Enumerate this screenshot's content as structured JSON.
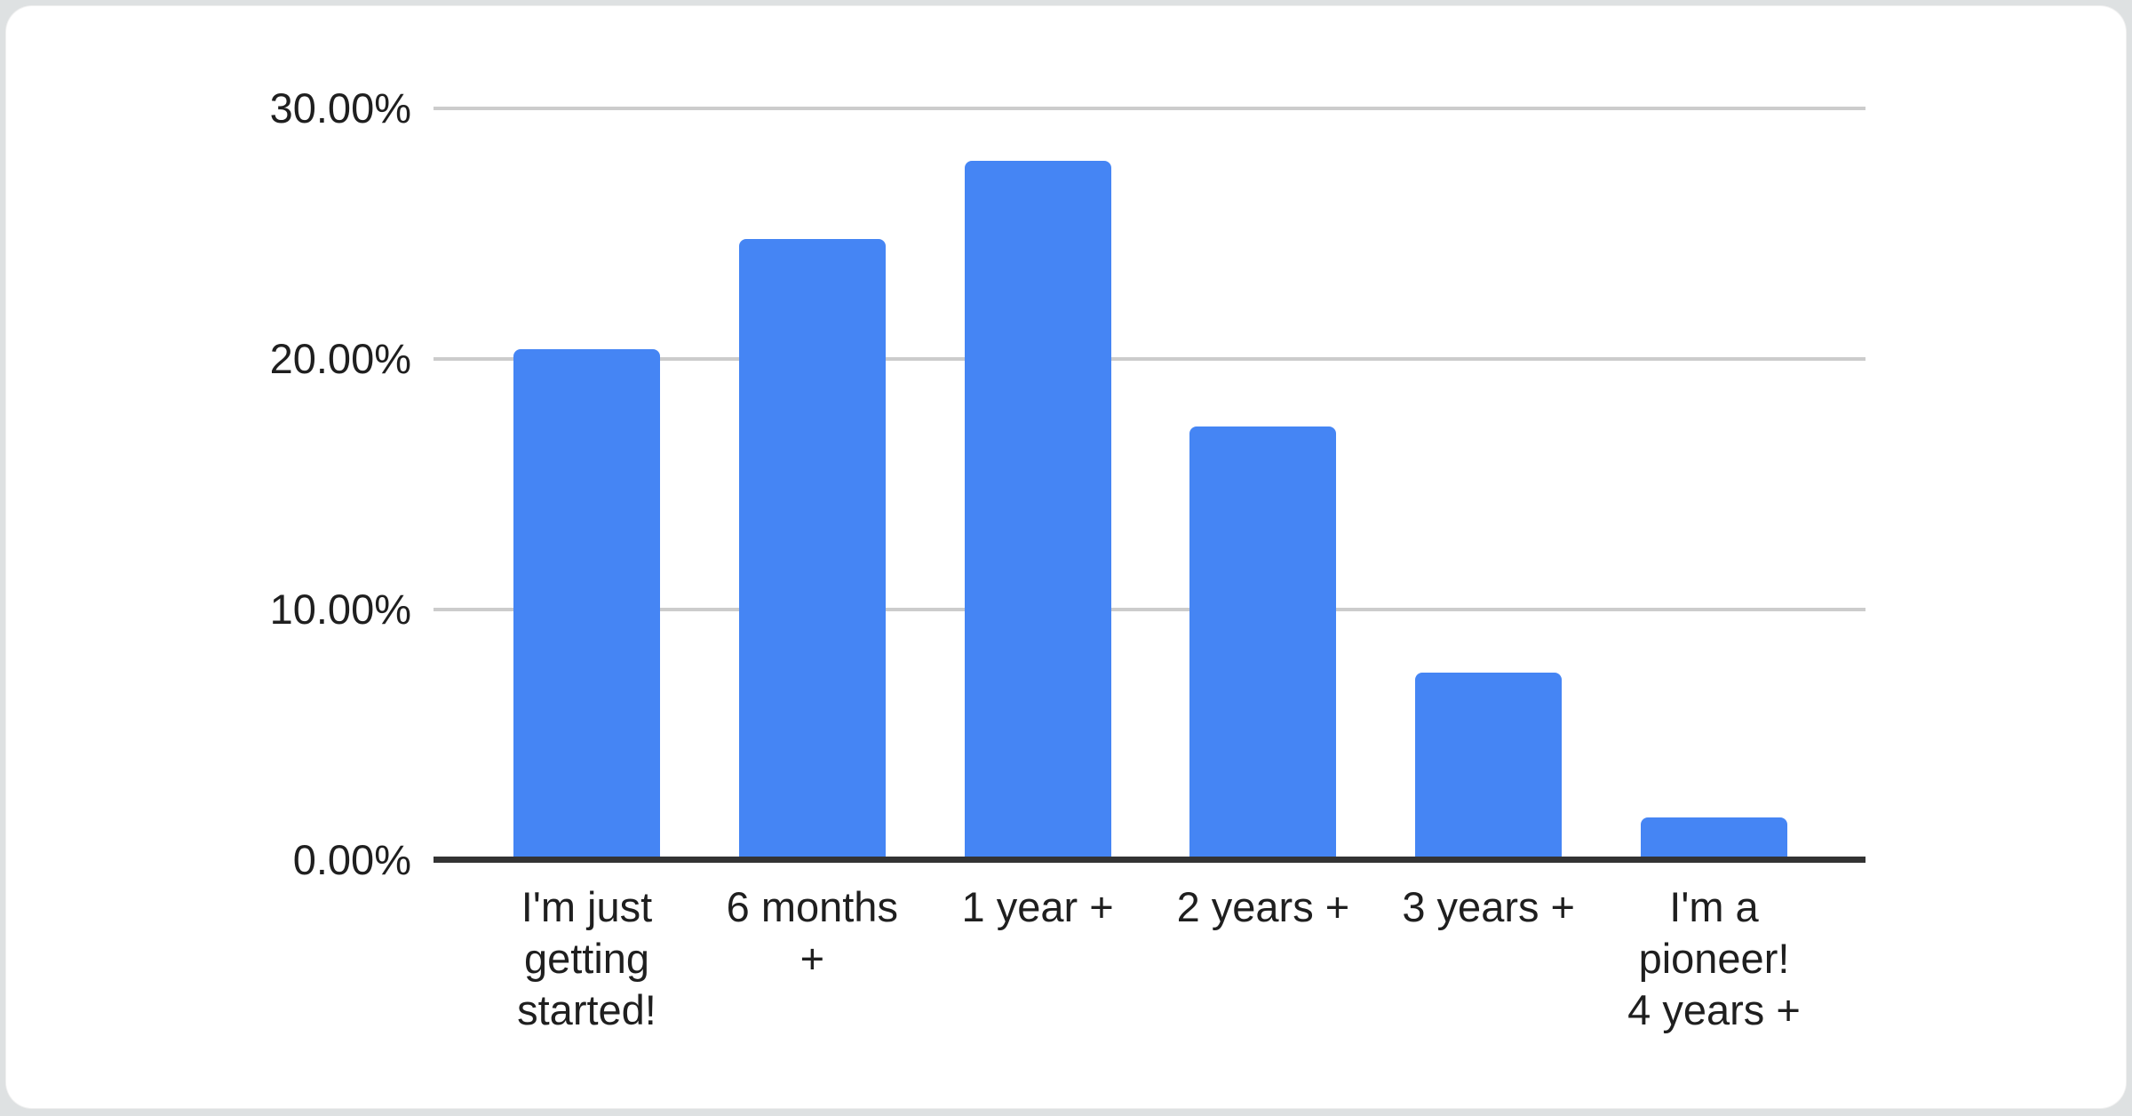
{
  "page": {
    "background_color": "#dee1e2",
    "card_background_color": "#ffffff"
  },
  "chart_data": {
    "type": "bar",
    "title": "",
    "xlabel": "",
    "ylabel": "",
    "legend_position": "none",
    "grid": true,
    "ylim": [
      0,
      30
    ],
    "categories": [
      "I'm just getting started!",
      "6 months +",
      "1 year +",
      "2 years +",
      "3 years +",
      "I'm a pioneer! 4 years +"
    ],
    "values": [
      20.4,
      24.8,
      27.9,
      17.3,
      7.5,
      1.7
    ],
    "unit": "%",
    "yticks": [
      {
        "value": 30,
        "label": "30.00%"
      },
      {
        "value": 20,
        "label": "20.00%"
      },
      {
        "value": 10,
        "label": "10.00%"
      },
      {
        "value": 0,
        "label": "0.00%"
      }
    ],
    "colors": {
      "bar": "#4585f4",
      "gridline": "#cccccc",
      "axis_line": "#333333",
      "label_text": "#1f1f1f"
    }
  }
}
